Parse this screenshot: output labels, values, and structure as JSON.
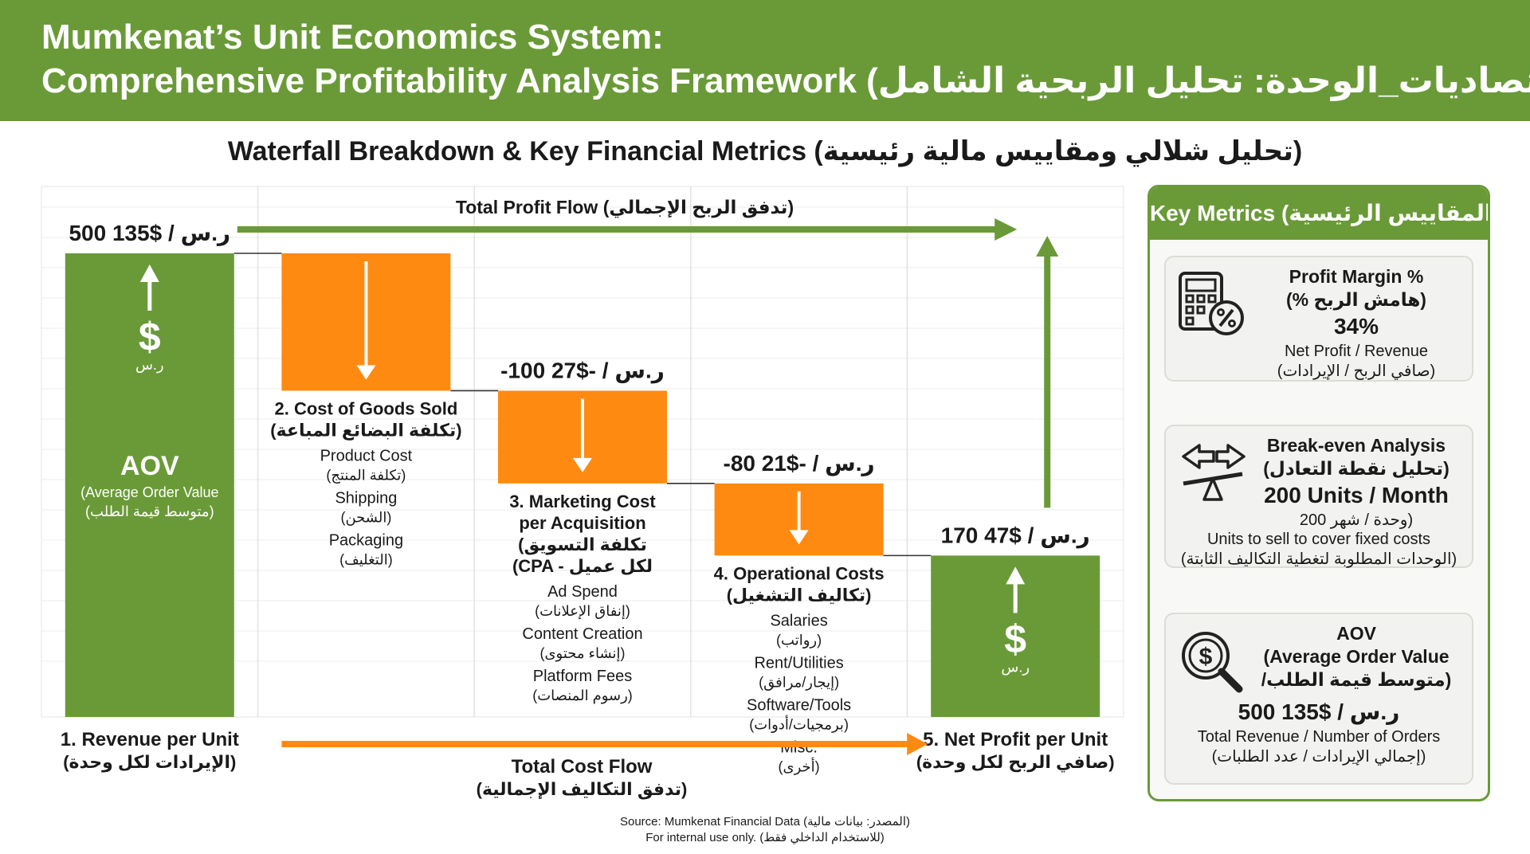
{
  "header": {
    "title_line1": "Mumkenat’s Unit Economics System:",
    "title_line2": "Comprehensive Profitability Analysis Framework (اقتصاديات_الوحدة: تحليل الربحية الشامل)"
  },
  "subtitle": "Waterfall Breakdown & Key Financial Metrics (تحليل شلالي ومقاييس مالية رئيسية)",
  "colors": {
    "green": "#6a9a38",
    "orange": "#ff8a12"
  },
  "chart_data": {
    "type": "waterfall",
    "unit": "$",
    "unit_local": "ر.س",
    "steps": [
      {
        "name": "Revenue per Unit",
        "kind": "total",
        "value": 135,
        "value_local": 500,
        "value_label": "500 ر.س / $135",
        "label_lines": [
          "1. Revenue per Unit",
          "(الإيرادات لكل وحدة)"
        ],
        "bar_texts": [
          "AOV",
          "(Average Order Value",
          "(متوسط قيمة الطلب)"
        ],
        "symbol": "$",
        "symbol_local": "ر.س",
        "items": []
      },
      {
        "name": "Cost of Goods Sold",
        "kind": "decrease",
        "value": -40,
        "value_local": -150,
        "value_label": "",
        "label_lines": [
          "2. Cost of Goods Sold",
          "(تكلفة البضائع المباعة)"
        ],
        "items": [
          "Product Cost",
          "(تكلفة المنتج)",
          "Shipping",
          "(الشحن)",
          "Packaging",
          "(التغليف)"
        ]
      },
      {
        "name": "Marketing Cost per Acquisition",
        "kind": "decrease",
        "value": -27,
        "value_local": -100,
        "value_label": "-100 ر.س / -$27",
        "label_lines": [
          "3. Marketing Cost",
          "per Acquisition",
          "(تكلفة التسويق",
          "(CPA - لكل عميل"
        ],
        "items": [
          "Ad Spend",
          "(إنفاق الإعلانات)",
          "Content Creation",
          "(إنشاء محتوى)",
          "Platform Fees",
          "(رسوم المنصات)"
        ]
      },
      {
        "name": "Operational Costs",
        "kind": "decrease",
        "value": -21,
        "value_local": -80,
        "value_label": "-80 ر.س / -$21",
        "label_lines": [
          "4. Operational Costs",
          "(تكاليف التشغيل)"
        ],
        "items": [
          "Salaries",
          "(رواتب)",
          "Rent/Utilities",
          "(إيجار/مرافق)",
          "Software/Tools",
          "(برمجيات/أدوات)",
          "Misc.",
          "(أخرى)"
        ]
      },
      {
        "name": "Net Profit per Unit",
        "kind": "total",
        "value": 47,
        "value_local": 170,
        "value_label": "170 ر.س / $47",
        "label_lines": [
          "5. Net Profit per Unit",
          "(صافي الربح لكل وحدة)"
        ],
        "symbol": "$",
        "symbol_local": "ر.س",
        "items": []
      }
    ],
    "profit_flow_label": "Total Profit Flow (تدفق الربح الإجمالي)",
    "cost_flow_label": [
      "Total Cost Flow",
      "(تدفق التكاليف الإجمالية)"
    ],
    "ylim": [
      0,
      150
    ],
    "grid": true
  },
  "metrics": {
    "title": "Key Metrics (المقاييس الرئيسية)",
    "cards": [
      {
        "icon": "calculator-percent-icon",
        "lines": [
          "Profit Margin %",
          "(% هامش الربح)"
        ],
        "value": "34%",
        "notes": [
          "Net Profit / Revenue",
          "(صافي الربح / الإيرادات)"
        ]
      },
      {
        "icon": "balance-arrows-icon",
        "lines": [
          "Break-even Analysis",
          "(تحليل نقطة التعادل)"
        ],
        "value": "200 Units / Month",
        "value_sub": "200 وحدة / شهر)",
        "notes": [
          "Units to sell to cover fixed costs",
          "(الوحدات المطلوبة لتغطية التكاليف الثابتة)"
        ]
      },
      {
        "icon": "dollar-magnifier-icon",
        "lines": [
          "AOV",
          "(Average Order Value",
          "/متوسط قيمة الطلب)"
        ],
        "value": "500 ر.س / $135",
        "notes": [
          "Total Revenue / Number of Orders",
          "(إجمالي الإيرادات / عدد الطلبات)"
        ]
      }
    ]
  },
  "source": {
    "line1": "Source: Mumkenat Financial Data (المصدر: بيانات مالية)",
    "line2": "For internal use only. (للاستخدام الداخلي فقط)"
  }
}
